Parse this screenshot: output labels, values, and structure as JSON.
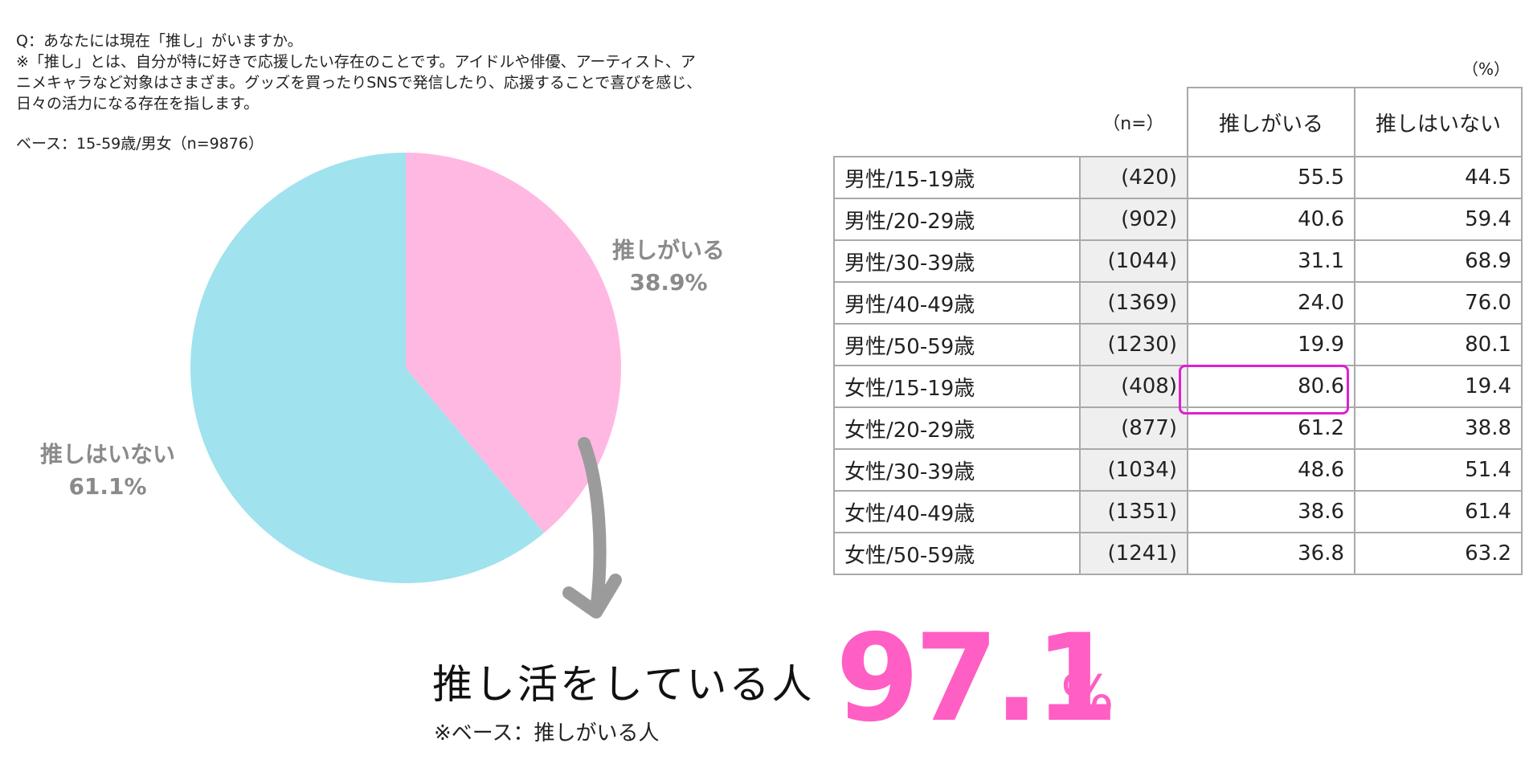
{
  "question": {
    "lines": [
      "Q：あなたには現在「推し」がいますか。",
      "※「推し」とは、自分が特に好きで応援したい存在のことです。アイドルや俳優、アーティスト、ア",
      "ニメキャラなど対象はさまざま。グッズを買ったりSNSで発信したり、応援することで喜びを感じ、",
      "日々の活力になる存在を指します。"
    ],
    "base": "ベース：15-59歳/男女（n=9876）"
  },
  "chart_data": {
    "type": "pie",
    "title": "",
    "slices": [
      {
        "label": "推しがいる",
        "value": 38.9,
        "value_label": "38.9%",
        "color": "#ffb8e2"
      },
      {
        "label": "推しはいない",
        "value": 61.1,
        "value_label": "61.1%",
        "color": "#a0e2ee"
      }
    ]
  },
  "table": {
    "unit": "（%）",
    "n_header": "（n=）",
    "columns": [
      "推しがいる",
      "推しはいない"
    ],
    "rows": [
      {
        "group": "男性/15-19歳",
        "n": "(420)",
        "v1": "55.5",
        "v2": "44.5"
      },
      {
        "group": "男性/20-29歳",
        "n": "(902)",
        "v1": "40.6",
        "v2": "59.4"
      },
      {
        "group": "男性/30-39歳",
        "n": "(1044)",
        "v1": "31.1",
        "v2": "68.9"
      },
      {
        "group": "男性/40-49歳",
        "n": "(1369)",
        "v1": "24.0",
        "v2": "76.0"
      },
      {
        "group": "男性/50-59歳",
        "n": "(1230)",
        "v1": "19.9",
        "v2": "80.1"
      },
      {
        "group": "女性/15-19歳",
        "n": "(408)",
        "v1": "80.6",
        "v2": "19.4"
      },
      {
        "group": "女性/20-29歳",
        "n": "(877)",
        "v1": "61.2",
        "v2": "38.8"
      },
      {
        "group": "女性/30-39歳",
        "n": "(1034)",
        "v1": "48.6",
        "v2": "51.4"
      },
      {
        "group": "女性/40-49歳",
        "n": "(1351)",
        "v1": "38.6",
        "v2": "61.4"
      },
      {
        "group": "女性/50-59歳",
        "n": "(1241)",
        "v1": "36.8",
        "v2": "63.2"
      }
    ],
    "highlight_color": "#e020d0"
  },
  "callout": {
    "caption": "推し活をしている人",
    "number": "97.1",
    "unit": "%",
    "base_note": "※ベース：推しがいる人",
    "color": "#ff5ec4"
  }
}
